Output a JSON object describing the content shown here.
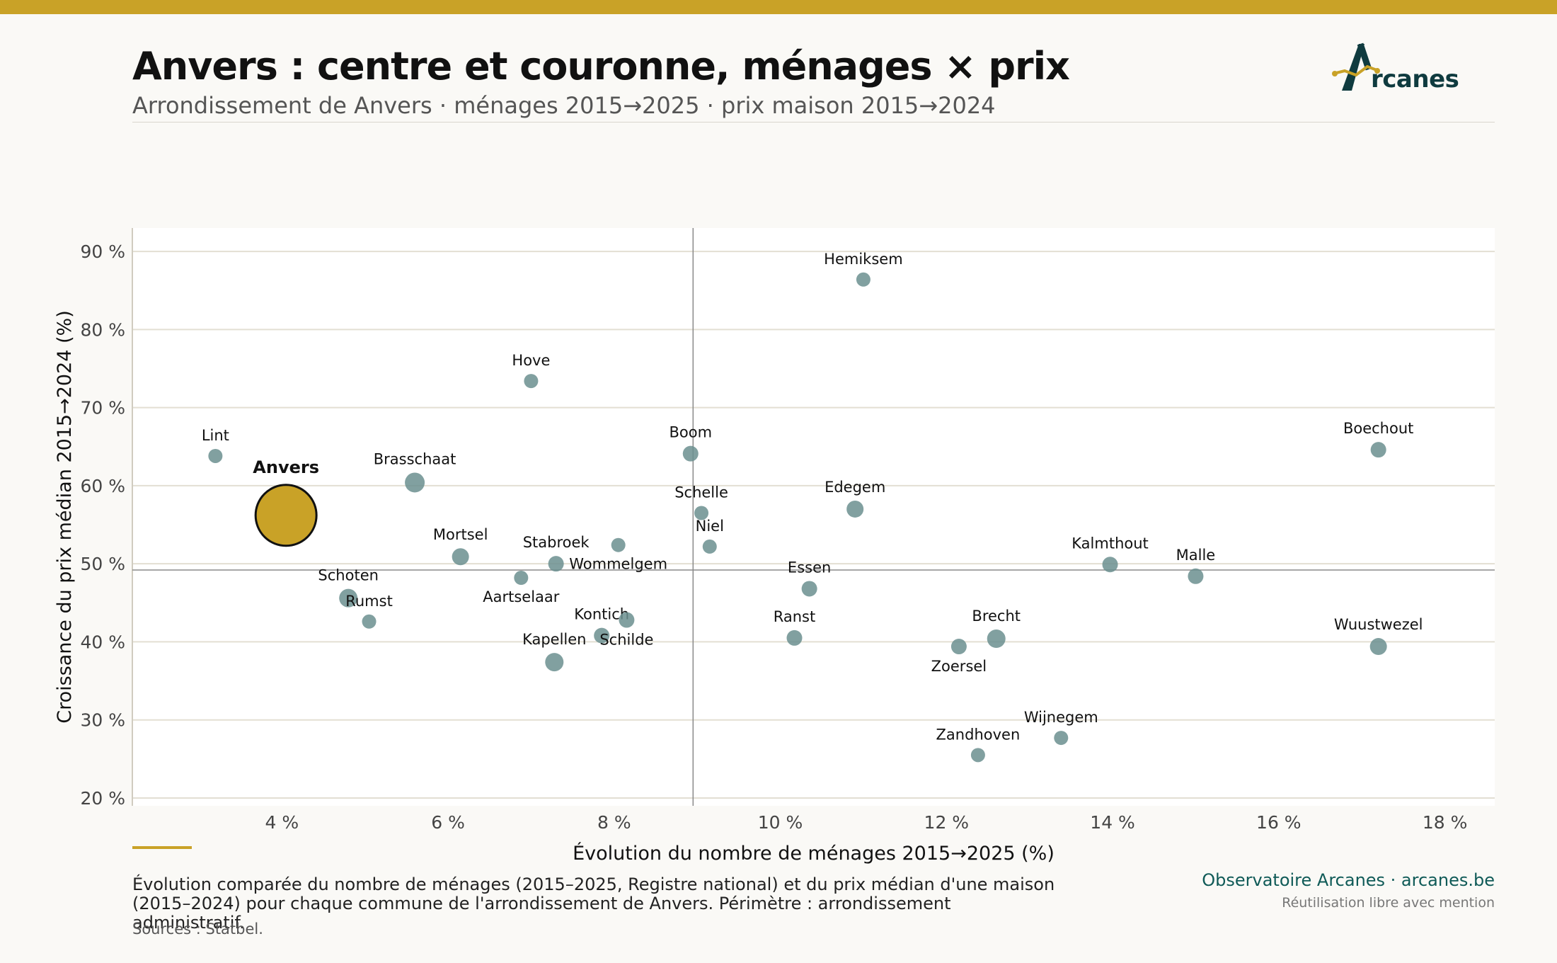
{
  "header": {
    "title": "Anvers : centre et couronne, ménages × prix",
    "subtitle": "Arrondissement de Anvers · ménages 2015→2025 · prix maison 2015→2024"
  },
  "logo": {
    "text": "rcanes",
    "icon": "arcanes-a-logo-icon"
  },
  "colors": {
    "accent": "#c9a227",
    "point": "#6b8f8f",
    "brand": "#0f5a57",
    "text": "#111111"
  },
  "chart_data": {
    "type": "scatter",
    "xlabel": "Évolution du nombre de ménages 2015→2025 (%)",
    "ylabel": "Croissance du prix médian 2015→2024 (%)",
    "xlim": [
      2.2,
      18.6
    ],
    "ylim": [
      19,
      93
    ],
    "xticks": [
      4,
      6,
      8,
      10,
      12,
      14,
      16,
      18
    ],
    "xtick_labels": [
      "4 %",
      "6 %",
      "8 %",
      "10 %",
      "12 %",
      "14 %",
      "16 %",
      "18 %"
    ],
    "yticks": [
      20,
      30,
      40,
      50,
      60,
      70,
      80,
      90
    ],
    "ytick_labels": [
      "20 %",
      "30 %",
      "40 %",
      "50 %",
      "60 %",
      "70 %",
      "80 %",
      "90 %"
    ],
    "grid": "horizontal",
    "reference_lines": {
      "x": 8.95,
      "y": 49.2
    },
    "highlight": {
      "name": "Anvers",
      "x": 4.05,
      "y": 56.2,
      "size": "large",
      "color": "#c9a227"
    },
    "points": [
      {
        "name": "Lint",
        "x": 3.2,
        "y": 63.8,
        "size": 1.0,
        "label_pos": "above"
      },
      {
        "name": "Brasschaat",
        "x": 5.6,
        "y": 60.4,
        "size": 1.4,
        "label_pos": "above"
      },
      {
        "name": "Hove",
        "x": 7.0,
        "y": 73.4,
        "size": 1.0,
        "label_pos": "above"
      },
      {
        "name": "Mortsel",
        "x": 6.15,
        "y": 50.9,
        "size": 1.2,
        "label_pos": "above"
      },
      {
        "name": "Schoten",
        "x": 4.8,
        "y": 45.6,
        "size": 1.3,
        "label_pos": "above"
      },
      {
        "name": "Rumst",
        "x": 5.05,
        "y": 42.6,
        "size": 1.0,
        "label_pos": "above"
      },
      {
        "name": "Aartselaar",
        "x": 6.88,
        "y": 48.2,
        "size": 1.0,
        "label_pos": "below"
      },
      {
        "name": "Stabroek",
        "x": 7.3,
        "y": 50.0,
        "size": 1.1,
        "label_pos": "above"
      },
      {
        "name": "Wommelgem",
        "x": 8.05,
        "y": 52.4,
        "size": 1.0,
        "label_pos": "below"
      },
      {
        "name": "Kapellen",
        "x": 7.28,
        "y": 37.4,
        "size": 1.3,
        "label_pos": "above"
      },
      {
        "name": "Kontich",
        "x": 7.85,
        "y": 40.8,
        "size": 1.1,
        "label_pos": "above"
      },
      {
        "name": "Schilde",
        "x": 8.15,
        "y": 42.8,
        "size": 1.1,
        "label_pos": "below"
      },
      {
        "name": "Boom",
        "x": 8.92,
        "y": 64.1,
        "size": 1.1,
        "label_pos": "above"
      },
      {
        "name": "Schelle",
        "x": 9.05,
        "y": 56.5,
        "size": 1.0,
        "label_pos": "above"
      },
      {
        "name": "Niel",
        "x": 9.15,
        "y": 52.2,
        "size": 1.0,
        "label_pos": "above"
      },
      {
        "name": "Hemiksem",
        "x": 11.0,
        "y": 86.4,
        "size": 1.0,
        "label_pos": "above"
      },
      {
        "name": "Edegem",
        "x": 10.9,
        "y": 57.0,
        "size": 1.2,
        "label_pos": "above"
      },
      {
        "name": "Essen",
        "x": 10.35,
        "y": 46.8,
        "size": 1.1,
        "label_pos": "above"
      },
      {
        "name": "Ranst",
        "x": 10.17,
        "y": 40.5,
        "size": 1.1,
        "label_pos": "above"
      },
      {
        "name": "Zoersel",
        "x": 12.15,
        "y": 39.4,
        "size": 1.1,
        "label_pos": "below"
      },
      {
        "name": "Brecht",
        "x": 12.6,
        "y": 40.4,
        "size": 1.3,
        "label_pos": "above"
      },
      {
        "name": "Zandhoven",
        "x": 12.38,
        "y": 25.5,
        "size": 1.0,
        "label_pos": "above"
      },
      {
        "name": "Wijnegem",
        "x": 13.38,
        "y": 27.7,
        "size": 1.0,
        "label_pos": "above"
      },
      {
        "name": "Kalmthout",
        "x": 13.97,
        "y": 49.9,
        "size": 1.1,
        "label_pos": "above"
      },
      {
        "name": "Malle",
        "x": 15.0,
        "y": 48.4,
        "size": 1.1,
        "label_pos": "above"
      },
      {
        "name": "Boechout",
        "x": 17.2,
        "y": 64.6,
        "size": 1.1,
        "label_pos": "above"
      },
      {
        "name": "Wuustwezel",
        "x": 17.2,
        "y": 39.4,
        "size": 1.2,
        "label_pos": "above"
      }
    ]
  },
  "footer": {
    "note": "Évolution comparée du nombre de ménages (2015–2025, Registre national) et du prix médian d'une maison (2015–2024) pour chaque commune de l'arrondissement de Anvers. Périmètre : arrondissement administratif.",
    "sources": "Sources : Statbel.",
    "brand": "Observatoire Arcanes · arcanes.be",
    "reuse": "Réutilisation libre avec mention"
  }
}
